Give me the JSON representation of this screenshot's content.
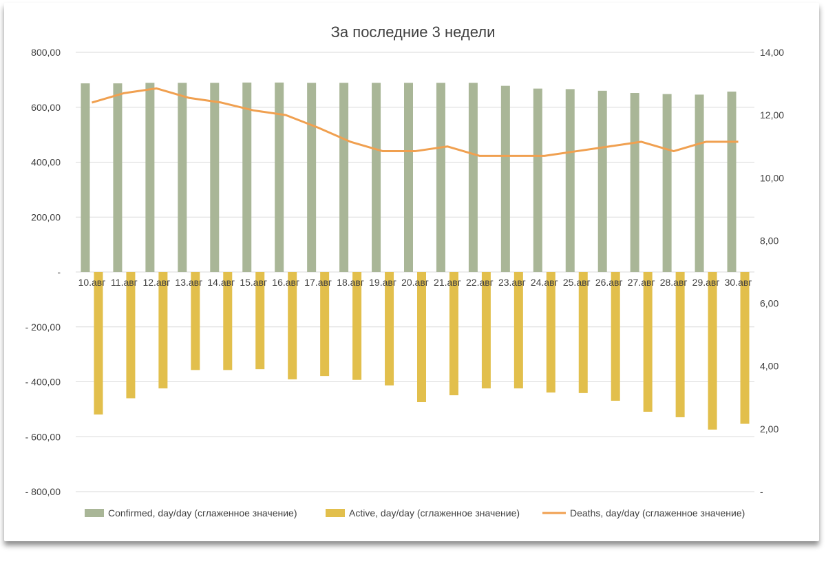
{
  "chart_data": {
    "type": "bar",
    "title": "За последние 3 недели",
    "categories": [
      "10.авг",
      "11.авг",
      "12.авг",
      "13.авг",
      "14.авг",
      "15.авг",
      "16.авг",
      "17.авг",
      "18.авг",
      "19.авг",
      "20.авг",
      "21.авг",
      "22.авг",
      "23.авг",
      "24.авг",
      "25.авг",
      "26.авг",
      "27.авг",
      "28.авг",
      "29.авг",
      "30.авг"
    ],
    "series": [
      {
        "name": "Confirmed, day/day (сглаженное значение)",
        "type": "bar",
        "axis": "left",
        "color": "#a9b697",
        "values": [
          687,
          687,
          689,
          689,
          689,
          690,
          690,
          689,
          689,
          689,
          689,
          689,
          689,
          678,
          668,
          666,
          660,
          652,
          648,
          646,
          657
        ]
      },
      {
        "name": "Active, day/day (сглаженное значение)",
        "type": "bar",
        "axis": "left",
        "color": "#e2bf4c",
        "values": [
          -519,
          -460,
          -424,
          -357,
          -357,
          -354,
          -391,
          -379,
          -393,
          -413,
          -474,
          -449,
          -424,
          -424,
          -439,
          -441,
          -469,
          -509,
          -529,
          -574,
          -553
        ]
      },
      {
        "name": "Deaths, day/day (сглаженное значение)",
        "type": "line",
        "axis": "right",
        "color": "#f0a050",
        "values": [
          12.4,
          12.7,
          12.85,
          12.55,
          12.4,
          12.15,
          12.0,
          11.6,
          11.15,
          10.85,
          10.85,
          11.0,
          10.7,
          10.7,
          10.7,
          10.85,
          11.0,
          11.15,
          10.85,
          11.15,
          11.15
        ]
      }
    ],
    "y_left": {
      "min": -800,
      "max": 800,
      "step": 200,
      "tick_labels": [
        "- 800,00",
        "- 600,00",
        "- 400,00",
        "- 200,00",
        "-",
        "200,00",
        "400,00",
        "600,00",
        "800,00"
      ]
    },
    "y_right": {
      "min": 0,
      "max": 14,
      "step": 2,
      "tick_labels": [
        "-",
        "2,00",
        "4,00",
        "6,00",
        "8,00",
        "10,00",
        "12,00",
        "14,00"
      ]
    },
    "grid": true,
    "legend": "bottom"
  }
}
